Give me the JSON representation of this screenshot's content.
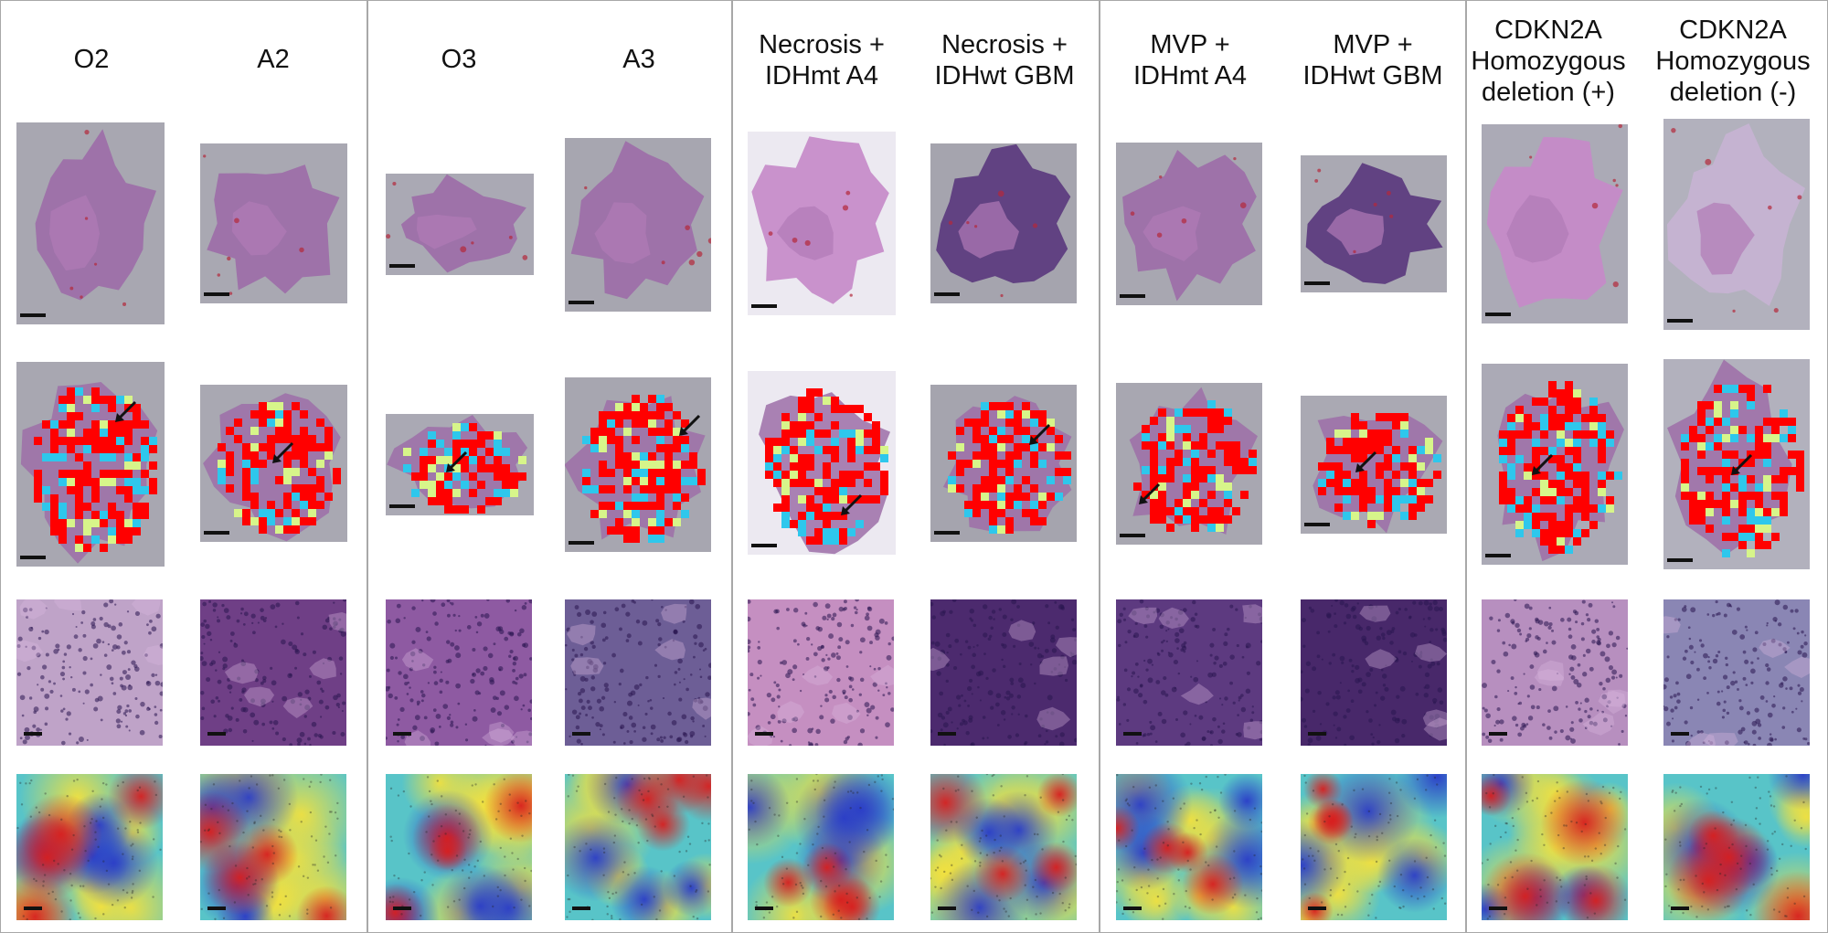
{
  "figure": {
    "columns": [
      {
        "label": "O2"
      },
      {
        "label": "A2"
      },
      {
        "label": "O3"
      },
      {
        "label": "A3"
      },
      {
        "label": "Necrosis +\nIDHmt A4"
      },
      {
        "label": "Necrosis +\nIDHwt GBM"
      },
      {
        "label": "MVP +\nIDHmt A4"
      },
      {
        "label": "MVP +\nIDHwt GBM"
      },
      {
        "label": "CDKN2A\nHomozygous\ndeletion (+)"
      },
      {
        "label": "CDKN2A\nHomozygous\ndeletion (-)"
      }
    ],
    "colors": {
      "background_gray": "#a9a8b2",
      "tissue_purple": "#9d6ea8",
      "overlay_red": "#ff0000",
      "overlay_cyan": "#2ec7ec",
      "overlay_yellow": "#d7f58a",
      "heat_blue": "#2a3cc8",
      "heat_red": "#d81e1e"
    }
  }
}
